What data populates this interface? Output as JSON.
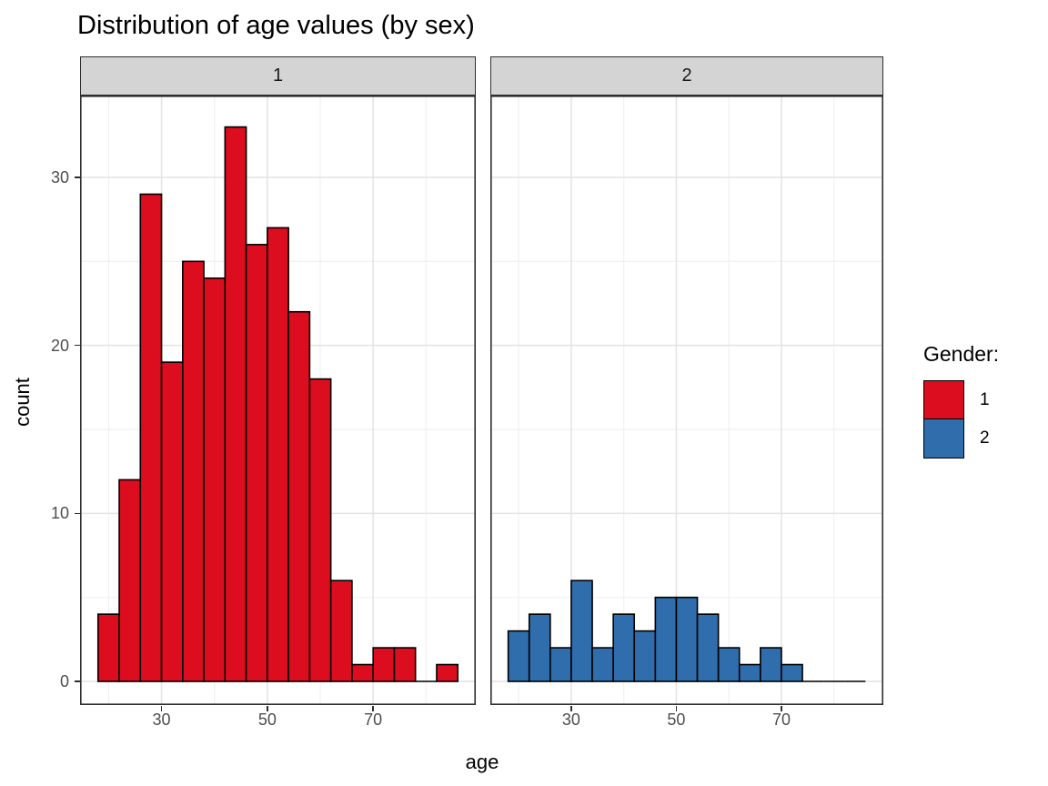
{
  "title": "Distribution of age values (by sex)",
  "axes": {
    "x_label": "age",
    "y_label": "count",
    "x_ticks": [
      30,
      50,
      70
    ],
    "x_minor": [
      20,
      40,
      60,
      80
    ],
    "y_ticks": [
      0,
      10,
      20,
      30
    ],
    "y_minor": [
      5,
      15,
      25
    ]
  },
  "legend": {
    "title": "Gender:",
    "items": [
      {
        "label": "1",
        "color": "#DC0D1E"
      },
      {
        "label": "2",
        "color": "#2F6DAD"
      }
    ]
  },
  "chart_data": {
    "type": "bar",
    "subtype": "faceted-histogram",
    "title": "Distribution of age values (by sex)",
    "xlabel": "age",
    "ylabel": "count",
    "facet_variable": "sex",
    "bin_start": 18,
    "bin_width": 4,
    "bin_end": 86,
    "xlim": [
      14.6,
      89.4
    ],
    "ylim": [
      0,
      34.7
    ],
    "x_ticks": [
      30,
      50,
      70
    ],
    "y_ticks": [
      0,
      10,
      20,
      30
    ],
    "grid": "on",
    "legend_position": "right",
    "facets": [
      {
        "label": "1",
        "gender": "1",
        "color": "#DC0D1E",
        "counts": [
          4,
          12,
          29,
          19,
          25,
          24,
          33,
          26,
          27,
          22,
          18,
          6,
          1,
          2,
          2,
          0,
          1
        ]
      },
      {
        "label": "2",
        "gender": "2",
        "color": "#2F6DAD",
        "counts": [
          3,
          4,
          2,
          6,
          2,
          4,
          3,
          5,
          5,
          4,
          2,
          1,
          2,
          1,
          0,
          0,
          0
        ]
      }
    ]
  }
}
